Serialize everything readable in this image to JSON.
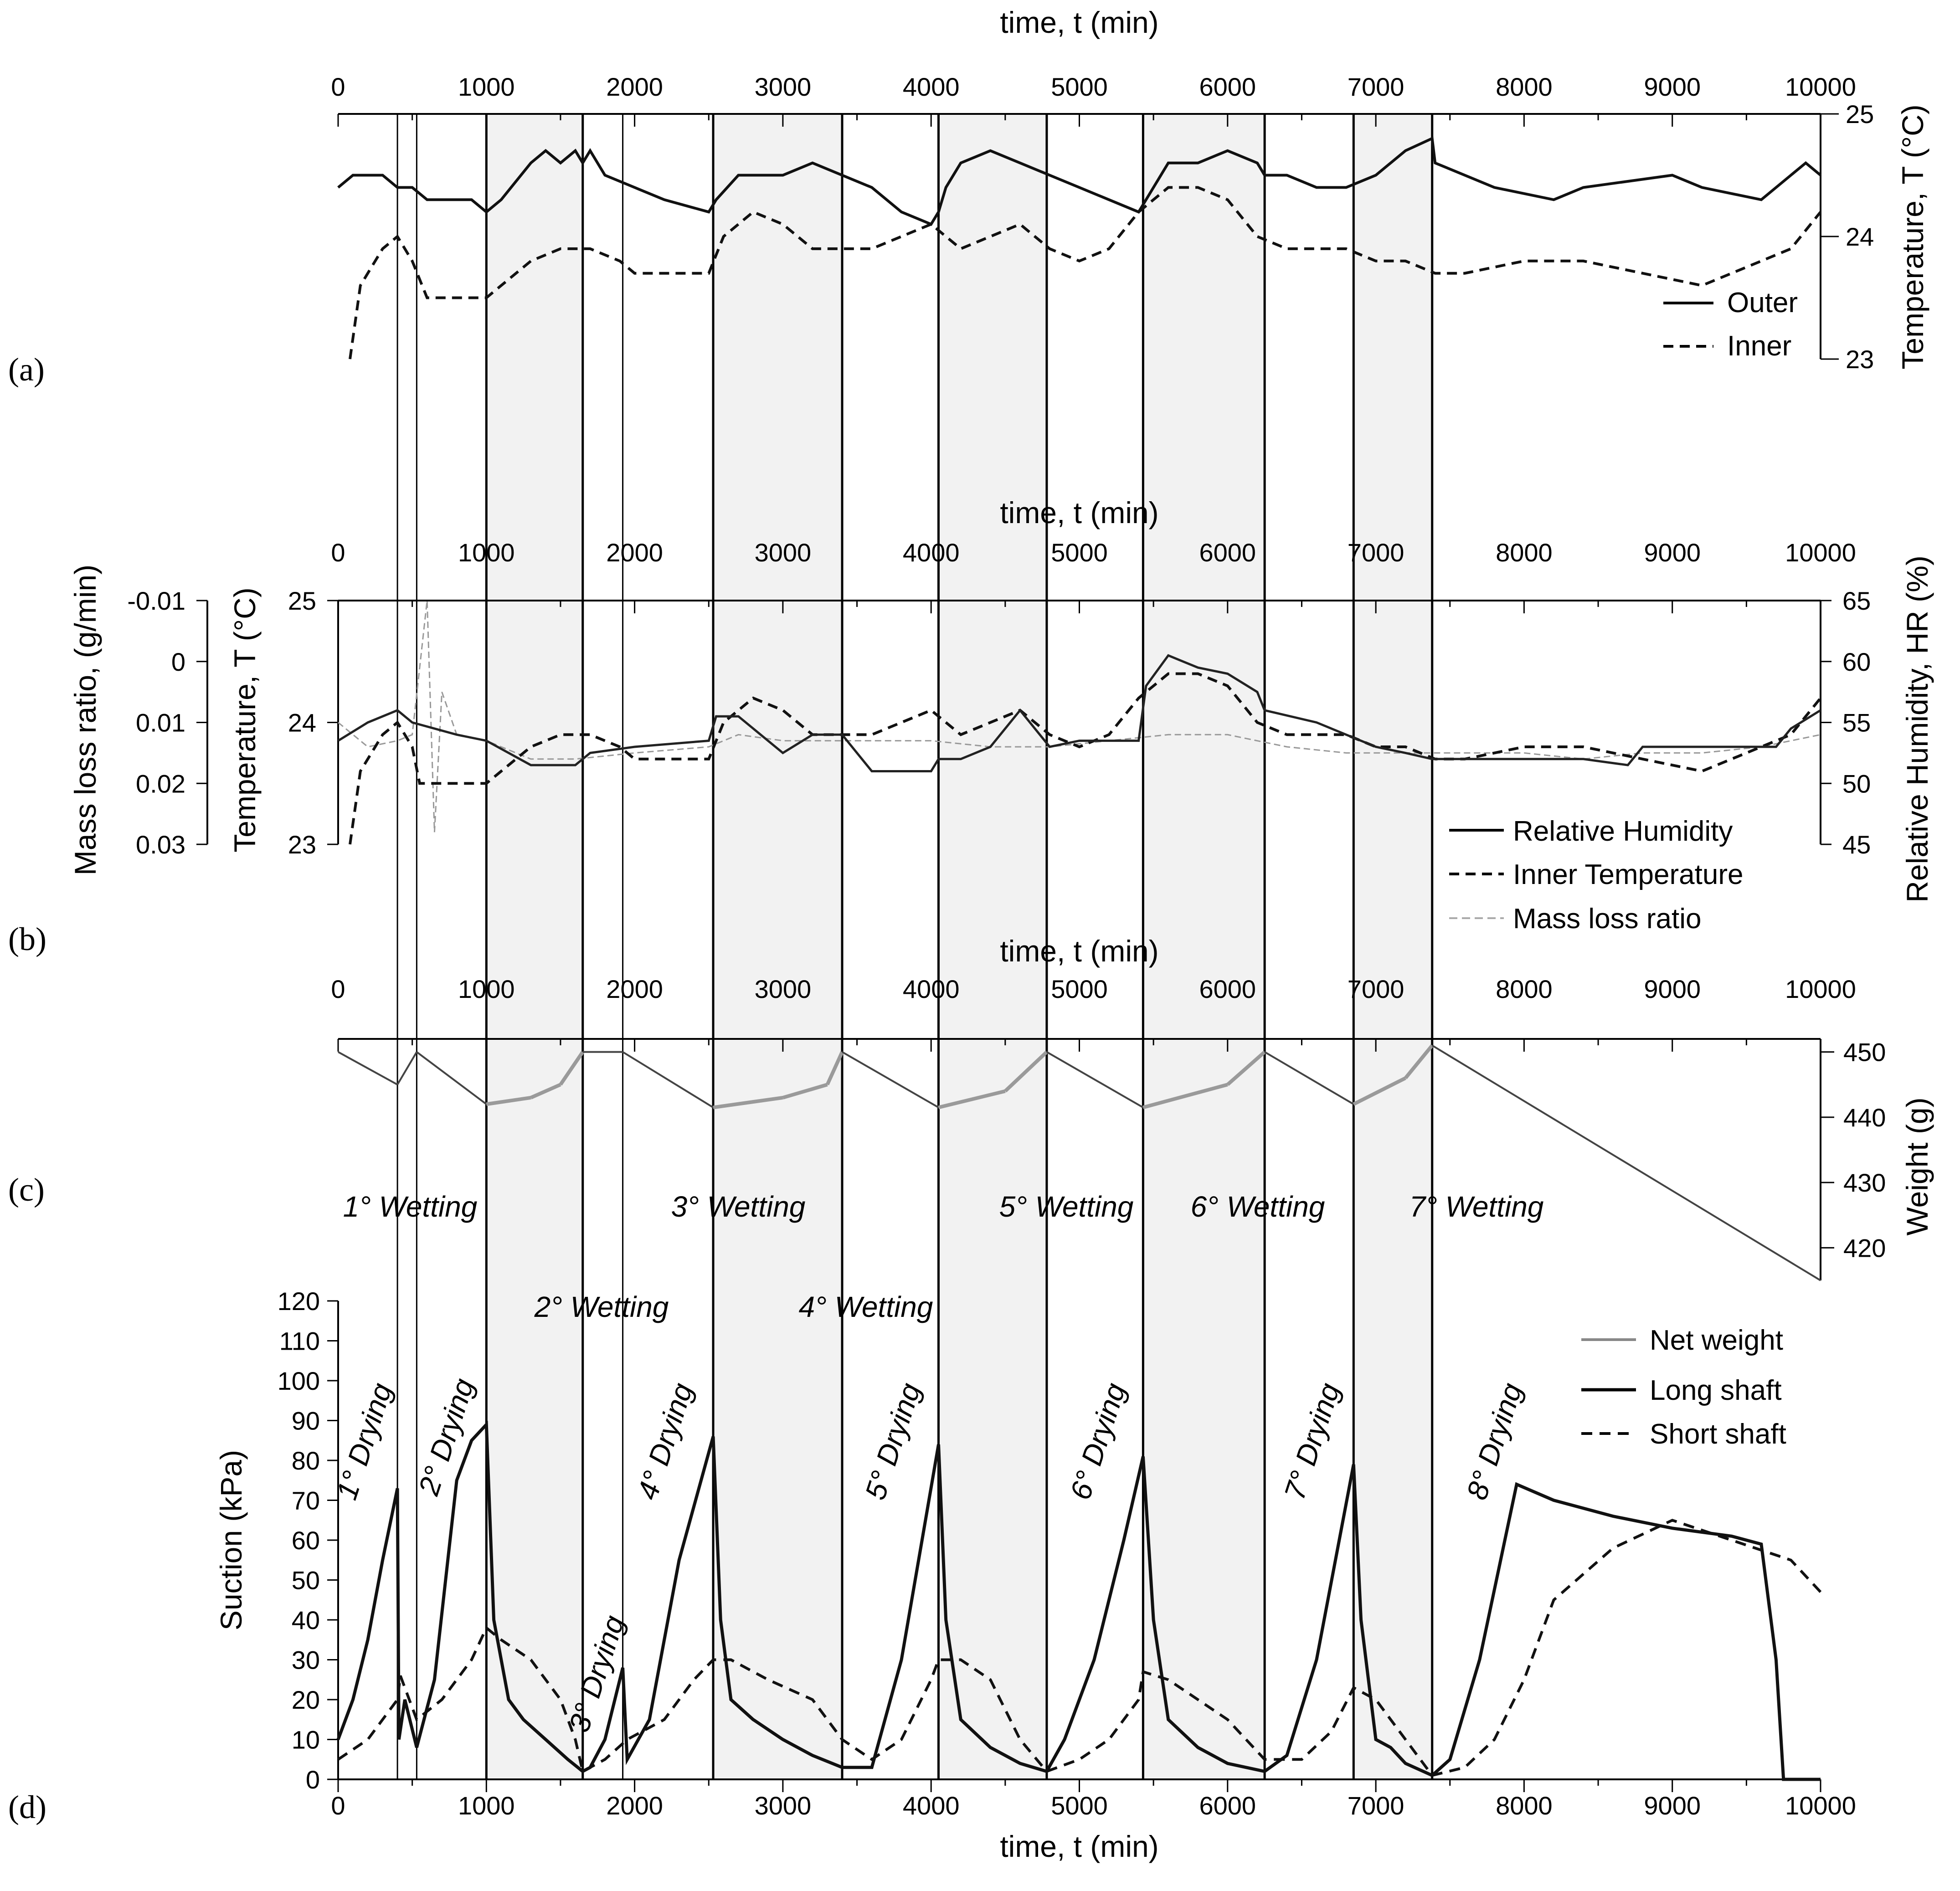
{
  "figure": {
    "panel_labels": [
      "(a)",
      "(b)",
      "(c)",
      "(d)"
    ]
  },
  "chart_data": [
    {
      "id": "a",
      "type": "line",
      "title": "",
      "xlabel": "time, t (min)",
      "ylabel": "Temperature, T (°C)",
      "xlim": [
        0,
        10000
      ],
      "ylim": [
        23,
        25
      ],
      "x_ticks": [
        0,
        1000,
        2000,
        3000,
        4000,
        5000,
        6000,
        7000,
        8000,
        9000,
        10000
      ],
      "y_ticks": [
        23,
        24,
        25
      ],
      "legend": [
        "Outer",
        "Inner"
      ],
      "legend_position": "bottom-right",
      "series": [
        {
          "name": "Outer",
          "x": [
            0,
            100,
            300,
            400,
            500,
            600,
            900,
            1000,
            1100,
            1300,
            1400,
            1500,
            1600,
            1650,
            1700,
            1800,
            2000,
            2200,
            2500,
            2550,
            2700,
            3000,
            3200,
            3400,
            3600,
            3800,
            4000,
            4050,
            4100,
            4200,
            4400,
            4600,
            4800,
            5000,
            5200,
            5400,
            5450,
            5600,
            5800,
            6000,
            6200,
            6250,
            6400,
            6600,
            6800,
            7000,
            7200,
            7380,
            7400,
            7600,
            7800,
            8200,
            8400,
            9000,
            9200,
            9600,
            9800,
            9900,
            10000
          ],
          "y": [
            24.4,
            24.5,
            24.5,
            24.4,
            24.4,
            24.3,
            24.3,
            24.2,
            24.3,
            24.6,
            24.7,
            24.6,
            24.7,
            24.6,
            24.7,
            24.5,
            24.4,
            24.3,
            24.2,
            24.3,
            24.5,
            24.5,
            24.6,
            24.5,
            24.4,
            24.2,
            24.1,
            24.2,
            24.4,
            24.6,
            24.7,
            24.6,
            24.5,
            24.4,
            24.3,
            24.2,
            24.3,
            24.6,
            24.6,
            24.7,
            24.6,
            24.5,
            24.5,
            24.4,
            24.4,
            24.5,
            24.7,
            24.8,
            24.6,
            24.5,
            24.4,
            24.3,
            24.4,
            24.5,
            24.4,
            24.3,
            24.5,
            24.6,
            24.5
          ]
        },
        {
          "name": "Inner",
          "x": [
            80,
            150,
            300,
            400,
            500,
            600,
            800,
            1000,
            1100,
            1300,
            1500,
            1700,
            1900,
            2000,
            2200,
            2500,
            2600,
            2800,
            3000,
            3200,
            3400,
            3600,
            3800,
            4000,
            4200,
            4400,
            4600,
            4800,
            5000,
            5200,
            5400,
            5600,
            5800,
            6000,
            6200,
            6400,
            6600,
            6800,
            7000,
            7200,
            7400,
            7600,
            8000,
            8400,
            8800,
            9200,
            9600,
            9800,
            10000
          ],
          "y": [
            23,
            23.6,
            23.9,
            24.0,
            23.8,
            23.5,
            23.5,
            23.5,
            23.6,
            23.8,
            23.9,
            23.9,
            23.8,
            23.7,
            23.7,
            23.7,
            24.0,
            24.2,
            24.1,
            23.9,
            23.9,
            23.9,
            24.0,
            24.1,
            23.9,
            24.0,
            24.1,
            23.9,
            23.8,
            23.9,
            24.2,
            24.4,
            24.4,
            24.3,
            24.0,
            23.9,
            23.9,
            23.9,
            23.8,
            23.8,
            23.7,
            23.7,
            23.8,
            23.8,
            23.7,
            23.6,
            23.8,
            23.9,
            24.2
          ]
        }
      ]
    },
    {
      "id": "b",
      "type": "line",
      "title": "",
      "xlabel": "time, t (min)",
      "ylabel": "Relative Humidity, HR (%)",
      "ylabel_temperature": "Temperature, T (°C)",
      "ylabel_mass": "Mass loss ratio, (g/min)",
      "xlim": [
        0,
        10000
      ],
      "ylim": [
        45,
        65
      ],
      "x_ticks": [
        0,
        1000,
        2000,
        3000,
        4000,
        5000,
        6000,
        7000,
        8000,
        9000,
        10000
      ],
      "hr_ticks": [
        45,
        50,
        55,
        60,
        65
      ],
      "temp_ticks": [
        23,
        24,
        25
      ],
      "mass_ticks": [
        -0.01,
        0,
        0.01,
        0.02,
        0.03
      ],
      "legend": [
        "Relative Humidity",
        "Inner Temperature",
        "Mass loss ratio"
      ],
      "legend_position": "bottom-right",
      "series": [
        {
          "name": "Relative Humidity",
          "x": [
            0,
            200,
            400,
            500,
            800,
            1000,
            1300,
            1600,
            1650,
            1700,
            2000,
            2500,
            2550,
            2700,
            3000,
            3200,
            3400,
            3600,
            4000,
            4050,
            4200,
            4400,
            4600,
            4800,
            5000,
            5200,
            5400,
            5450,
            5600,
            5700,
            5800,
            6000,
            6200,
            6250,
            6600,
            6800,
            7000,
            7200,
            7380,
            7600,
            8000,
            8400,
            8700,
            8800,
            9000,
            9200,
            9400,
            9600,
            9700,
            9800,
            10000
          ],
          "y": [
            53.5,
            55,
            56,
            55,
            54,
            53.5,
            51.5,
            51.5,
            52,
            52.5,
            53,
            53.5,
            55.5,
            55.5,
            52.5,
            54,
            54,
            51,
            51,
            52,
            52,
            53,
            56,
            53,
            53.5,
            53.5,
            53.5,
            58,
            60.5,
            60,
            59.5,
            59,
            57.5,
            56,
            55,
            54,
            53,
            52.5,
            52,
            52,
            52,
            52,
            51.5,
            53,
            53,
            53,
            53,
            53,
            53,
            54.5,
            56
          ]
        },
        {
          "name": "Inner Temperature",
          "x": [
            80,
            150,
            300,
            400,
            500,
            550,
            800,
            1000,
            1100,
            1300,
            1500,
            1700,
            1900,
            2000,
            2200,
            2500,
            2600,
            2800,
            3000,
            3200,
            3400,
            3600,
            3800,
            4000,
            4200,
            4400,
            4600,
            4800,
            5000,
            5200,
            5400,
            5600,
            5800,
            6000,
            6200,
            6400,
            6600,
            6800,
            7000,
            7200,
            7400,
            7600,
            8000,
            8400,
            8800,
            9200,
            9600,
            9800,
            10000
          ],
          "y": [
            23,
            23.6,
            23.9,
            24.0,
            23.8,
            23.5,
            23.5,
            23.5,
            23.6,
            23.8,
            23.9,
            23.9,
            23.8,
            23.7,
            23.7,
            23.7,
            24.0,
            24.2,
            24.1,
            23.9,
            23.9,
            23.9,
            24.0,
            24.1,
            23.9,
            24.0,
            24.1,
            23.9,
            23.8,
            23.9,
            24.2,
            24.4,
            24.4,
            24.3,
            24.0,
            23.9,
            23.9,
            23.9,
            23.8,
            23.8,
            23.7,
            23.7,
            23.8,
            23.8,
            23.7,
            23.6,
            23.8,
            23.9,
            24.2
          ]
        },
        {
          "name": "Mass loss ratio",
          "x": [
            0,
            200,
            400,
            500,
            600,
            650,
            700,
            800,
            1000,
            1300,
            1600,
            2000,
            2500,
            2700,
            3000,
            3400,
            4000,
            4400,
            4800,
            5200,
            5600,
            6000,
            6400,
            6800,
            7200,
            7600,
            8000,
            8400,
            8800,
            9200,
            9600,
            10000
          ],
          "y": [
            0.01,
            0.014,
            0.013,
            0.012,
            -0.01,
            0.028,
            0.005,
            0.012,
            0.013,
            0.016,
            0.016,
            0.015,
            0.014,
            0.012,
            0.013,
            0.013,
            0.013,
            0.014,
            0.014,
            0.013,
            0.012,
            0.012,
            0.014,
            0.015,
            0.015,
            0.015,
            0.015,
            0.016,
            0.015,
            0.015,
            0.014,
            0.012
          ]
        }
      ]
    },
    {
      "id": "c",
      "type": "line",
      "title": "",
      "xlabel": "time, t (min)",
      "ylabel": "Weight (g)",
      "xlim": [
        0,
        10000
      ],
      "ylim": [
        415,
        452
      ],
      "x_ticks": [
        0,
        1000,
        2000,
        3000,
        4000,
        5000,
        6000,
        7000,
        8000,
        9000,
        10000
      ],
      "y_ticks": [
        420,
        430,
        440,
        450
      ],
      "legend": [
        "Net weight"
      ],
      "series": [
        {
          "name": "Net weight",
          "x": [
            0,
            400,
            530,
            1000,
            1300,
            1500,
            1650,
            1920,
            2530,
            3000,
            3300,
            3400,
            4050,
            4500,
            4780,
            5430,
            6000,
            6250,
            6850,
            7200,
            7380,
            10000
          ],
          "y": [
            450,
            445,
            450,
            442,
            443,
            445,
            450,
            450,
            441.5,
            443,
            445,
            450,
            441.5,
            444,
            450,
            441.5,
            445,
            450,
            442,
            446,
            451,
            415
          ]
        }
      ]
    },
    {
      "id": "d",
      "type": "line",
      "title": "",
      "xlabel": "time, t (min)",
      "ylabel": "Suction (kPa)",
      "xlim": [
        0,
        10000
      ],
      "ylim": [
        0,
        120
      ],
      "x_ticks": [
        0,
        1000,
        2000,
        3000,
        4000,
        5000,
        6000,
        7000,
        8000,
        9000,
        10000
      ],
      "y_ticks": [
        0,
        10,
        20,
        30,
        40,
        50,
        60,
        70,
        80,
        90,
        100,
        110,
        120
      ],
      "legend": [
        "Net weight",
        "Long shaft",
        "Short shaft"
      ],
      "legend_position": "top-right",
      "phase_boundaries": [
        400,
        530,
        1000,
        1650,
        1920,
        2530,
        3400,
        4050,
        4780,
        5430,
        6250,
        6850,
        7380
      ],
      "wetting_bands": [
        [
          1000,
          1650
        ],
        [
          2530,
          3400
        ],
        [
          4050,
          4780
        ],
        [
          5430,
          6250
        ],
        [
          6850,
          7380
        ]
      ],
      "phase_labels": [
        "1° Wetting",
        "2° Wetting",
        "3° Wetting",
        "4° Wetting",
        "5° Wetting",
        "6° Wetting",
        "7° Wetting",
        "1° Drying",
        "2° Drying",
        "3° Drying",
        "4° Drying",
        "5° Drying",
        "6° Drying",
        "7° Drying",
        "8° Drying"
      ],
      "series": [
        {
          "name": "Long shaft",
          "x": [
            0,
            100,
            200,
            300,
            400,
            410,
            450,
            530,
            650,
            800,
            900,
            1000,
            1050,
            1150,
            1250,
            1400,
            1550,
            1650,
            1700,
            1800,
            1920,
            1950,
            2100,
            2300,
            2530,
            2580,
            2650,
            2800,
            3000,
            3200,
            3400,
            3600,
            3800,
            4050,
            4100,
            4200,
            4400,
            4600,
            4780,
            4900,
            5100,
            5300,
            5430,
            5500,
            5600,
            5800,
            6000,
            6250,
            6400,
            6600,
            6850,
            6900,
            7000,
            7100,
            7200,
            7380,
            7500,
            7700,
            7950,
            8200,
            8600,
            9000,
            9400,
            9600,
            9700,
            9750,
            10000
          ],
          "y": [
            10,
            20,
            35,
            55,
            73,
            10,
            20,
            8,
            25,
            75,
            85,
            89,
            40,
            20,
            15,
            10,
            5,
            2,
            3,
            10,
            28,
            5,
            15,
            55,
            86,
            40,
            20,
            15,
            10,
            6,
            3,
            3,
            30,
            84,
            40,
            15,
            8,
            4,
            2,
            10,
            30,
            60,
            81,
            40,
            15,
            8,
            4,
            2,
            6,
            30,
            79,
            40,
            10,
            8,
            4,
            1,
            5,
            30,
            74,
            70,
            66,
            63,
            61,
            59,
            30,
            0,
            0
          ]
        },
        {
          "name": "Short shaft",
          "x": [
            0,
            200,
            400,
            420,
            530,
            700,
            900,
            1000,
            1100,
            1300,
            1500,
            1600,
            1650,
            1800,
            1950,
            2200,
            2400,
            2530,
            2650,
            2900,
            3200,
            3400,
            3600,
            3800,
            4000,
            4050,
            4200,
            4400,
            4600,
            4780,
            5000,
            5200,
            5400,
            5430,
            5600,
            5800,
            6000,
            6250,
            6500,
            6700,
            6850,
            7000,
            7200,
            7380,
            7600,
            7800,
            8000,
            8200,
            8600,
            9000,
            9400,
            9800,
            10000
          ],
          "y": [
            5,
            10,
            20,
            26,
            15,
            20,
            30,
            38,
            35,
            30,
            20,
            10,
            2,
            5,
            10,
            15,
            25,
            30,
            30,
            25,
            20,
            10,
            5,
            10,
            25,
            30,
            30,
            25,
            10,
            2,
            5,
            10,
            20,
            27,
            25,
            20,
            15,
            5,
            5,
            12,
            23,
            20,
            10,
            1,
            3,
            10,
            25,
            45,
            58,
            65,
            60,
            55,
            47
          ]
        }
      ]
    }
  ]
}
